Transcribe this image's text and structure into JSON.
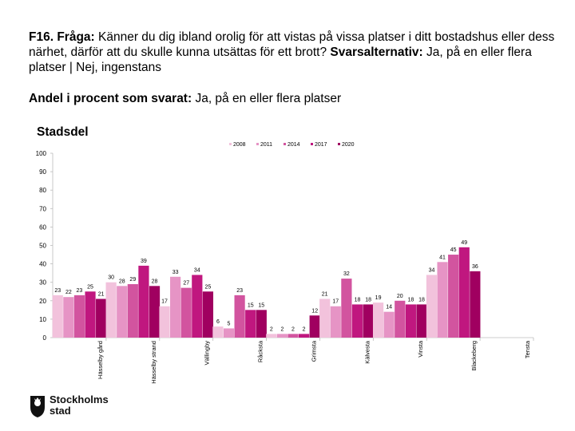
{
  "header": {
    "question_label": "F16. Fråga:",
    "question_text": " Känner du dig ibland orolig för att vistas på vissa platser i ditt bostadshus eller dess närhet, därför att du skulle kunna utsättas för ett brott?",
    "answers_label": " Svarsalternativ:",
    "answers_text": " Ja, på en eller flera platser | Nej, ingenstans",
    "share_label": "Andel i procent som svarat:",
    "share_text": " Ja, på en eller flera platser",
    "section_title": "Stadsdel"
  },
  "logo": {
    "line1": "Stockholms",
    "line2": "stad"
  },
  "chart_data": {
    "type": "bar",
    "title": "Stadsdel",
    "ylim": [
      0,
      100
    ],
    "yticks": [
      0,
      10,
      20,
      30,
      40,
      50,
      60,
      70,
      80,
      90,
      100
    ],
    "legend_position": "top",
    "categories": [
      "Hässelby gård",
      "Hässelby strand",
      "Vällingby",
      "Råcksta",
      "Grimsta",
      "Kälvesta",
      "Vinsta",
      "Blackeberg",
      "Tensta"
    ],
    "category_labels": [
      "Hässelby gård",
      "Hässelby strand",
      "Vällingby",
      "Råcksta",
      "Grimsta",
      "Kälvesta",
      "Vinsta",
      "Blackeberg",
      "Tensta"
    ],
    "series": [
      {
        "name": "2008",
        "color": "#f2c2dc",
        "values": [
          23,
          30,
          17,
          6,
          2,
          21,
          19,
          34,
          0
        ]
      },
      {
        "name": "2011",
        "color": "#e694c5",
        "values": [
          22,
          28,
          33,
          5,
          2,
          17,
          14,
          41,
          0
        ]
      },
      {
        "name": "2014",
        "color": "#d2549f",
        "values": [
          23,
          29,
          27,
          23,
          2,
          32,
          20,
          45,
          0
        ]
      },
      {
        "name": "2017",
        "color": "#c0177f",
        "values": [
          25,
          39,
          34,
          15,
          2,
          18,
          18,
          49,
          0
        ]
      },
      {
        "name": "2020",
        "color": "#a00060",
        "values": [
          21,
          28,
          25,
          15,
          12,
          18,
          18,
          36,
          0
        ]
      }
    ]
  }
}
